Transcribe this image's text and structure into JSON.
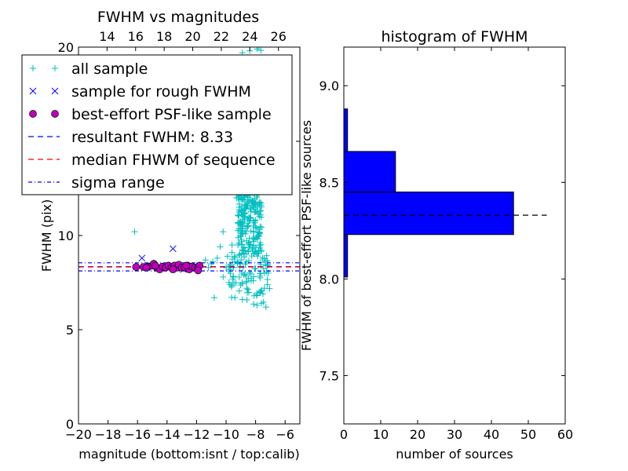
{
  "chart_data": [
    {
      "type": "scatter",
      "title": "FWHM vs magnitudes",
      "xlabel": "magnitude (bottom:isnt / top:calib)",
      "ylabel": "FWHM (pix)",
      "xlim": [
        -20,
        -5
      ],
      "ylim": [
        0,
        20
      ],
      "xticks": [
        -20,
        -18,
        -16,
        -14,
        -12,
        -10,
        -8,
        -6
      ],
      "xtick_labels": [
        "−20",
        "−18",
        "−16",
        "−14",
        "−12",
        "−10",
        "−8",
        "−6"
      ],
      "yticks": [
        0,
        5,
        10,
        15,
        20
      ],
      "ytick_labels": [
        "0",
        "5",
        "10",
        "15",
        "20"
      ],
      "top_xlim": [
        12,
        27.5
      ],
      "top_xticks": [
        14,
        16,
        18,
        20,
        22,
        24,
        26
      ],
      "top_xtick_labels": [
        "14",
        "16",
        "18",
        "20",
        "22",
        "24",
        "26"
      ],
      "legend_position": "upper-left",
      "legend": [
        {
          "label": "all sample",
          "marker": "+",
          "color": "#00bfbf"
        },
        {
          "label": "sample for rough FWHM",
          "marker": "x",
          "color": "#0000ff"
        },
        {
          "label": "best-effort PSF-like sample",
          "marker": "o",
          "color": "#bf00bf"
        },
        {
          "label": "resultant FWHM: 8.33",
          "line": "dashed",
          "color": "#0000ff"
        },
        {
          "label": "median FHWM of sequence",
          "line": "dashed",
          "color": "#ff0000"
        },
        {
          "label": "sigma range",
          "line": "dashdot",
          "color": "#0000ff"
        }
      ],
      "hlines": [
        {
          "y": 8.33,
          "style": "dashed",
          "color": "#0000ff"
        },
        {
          "y": 8.35,
          "style": "dashed",
          "color": "#ff0000"
        },
        {
          "y": 8.55,
          "style": "dashdot",
          "color": "#0000ff"
        },
        {
          "y": 8.12,
          "style": "dashdot",
          "color": "#0000ff"
        }
      ],
      "series": [
        {
          "name": "all sample",
          "color": "#00bfbf",
          "marker": "+",
          "points": [
            [
              -16.2,
              10.2
            ],
            [
              -7.8,
              20.0
            ],
            [
              -8.4,
              19.8
            ],
            [
              -7.9,
              19.9
            ],
            [
              -8.9,
              19.7
            ],
            [
              -10.2,
              10.2
            ],
            [
              -10.4,
              9.4
            ],
            [
              -9.6,
              9.1
            ],
            [
              -10.9,
              8.6
            ],
            [
              -10.6,
              8.8
            ],
            [
              -11.0,
              8.5
            ],
            [
              -9.8,
              8.2
            ],
            [
              -12.8,
              8.4
            ],
            [
              -14.2,
              8.3
            ],
            [
              -15.2,
              8.4
            ],
            [
              -11.4,
              8.7
            ],
            [
              -10.8,
              6.7
            ],
            [
              -9.4,
              6.7
            ],
            [
              -8.9,
              6.6
            ],
            [
              -7.9,
              6.3
            ],
            [
              -7.6,
              6.4
            ],
            [
              -7.3,
              6.2
            ],
            [
              -8.1,
              6.8
            ],
            [
              -7.7,
              7.0
            ],
            [
              -9.8,
              7.5
            ],
            [
              -10.2,
              7.8
            ],
            [
              -9.9,
              8.9
            ],
            [
              -9.6,
              9.5
            ],
            [
              -9.0,
              10.5
            ],
            [
              -8.8,
              11.0
            ],
            [
              -8.5,
              11.8
            ],
            [
              -8.2,
              12.3
            ],
            [
              -8.0,
              12.8
            ],
            [
              -9.3,
              12.0
            ],
            [
              -9.1,
              11.5
            ],
            [
              -7.5,
              6.9
            ],
            [
              -7.4,
              7.2
            ],
            [
              -7.2,
              7.4
            ],
            [
              -8.6,
              7.2
            ],
            [
              -8.3,
              7.6
            ],
            [
              -9.7,
              8.4
            ],
            [
              -9.5,
              8.3
            ],
            [
              -11.2,
              8.3
            ],
            [
              -10.0,
              8.3
            ],
            [
              -12.0,
              8.4
            ]
          ],
          "dense_clump": {
            "x_range": [
              -10,
              -7.2
            ],
            "y_range": [
              6.3,
              20
            ],
            "count": 380,
            "x_center": -8.4
          }
        },
        {
          "name": "sample for rough FWHM",
          "color": "#0000ff",
          "marker": "x",
          "points": [
            [
              -15.7,
              8.8
            ],
            [
              -13.6,
              9.3
            ],
            [
              -14.4,
              8.3
            ],
            [
              -13.8,
              8.4
            ],
            [
              -12.9,
              8.2
            ],
            [
              -12.1,
              8.4
            ],
            [
              -15.0,
              8.3
            ],
            [
              -13.1,
              8.3
            ]
          ]
        },
        {
          "name": "best-effort PSF-like sample",
          "color": "#bf00bf",
          "marker": "o",
          "points": [
            [
              -16.1,
              8.33
            ],
            [
              -15.6,
              8.33
            ],
            [
              -15.3,
              8.35
            ],
            [
              -15.0,
              8.4
            ],
            [
              -14.9,
              8.5
            ],
            [
              -14.7,
              8.3
            ],
            [
              -14.5,
              8.2
            ],
            [
              -14.3,
              8.35
            ],
            [
              -14.1,
              8.3
            ],
            [
              -13.9,
              8.4
            ],
            [
              -13.7,
              8.3
            ],
            [
              -13.5,
              8.4
            ],
            [
              -13.3,
              8.3
            ],
            [
              -13.2,
              8.45
            ],
            [
              -13.0,
              8.3
            ],
            [
              -12.8,
              8.3
            ],
            [
              -12.6,
              8.4
            ],
            [
              -12.5,
              8.2
            ],
            [
              -12.3,
              8.35
            ],
            [
              -12.1,
              8.3
            ],
            [
              -11.9,
              8.3
            ],
            [
              -11.8,
              8.4
            ],
            [
              -11.9,
              8.15
            ],
            [
              -12.7,
              8.4
            ],
            [
              -13.6,
              8.2
            ],
            [
              -14.8,
              8.4
            ],
            [
              -15.4,
              8.3
            ]
          ]
        }
      ]
    },
    {
      "type": "bar",
      "orientation": "horizontal",
      "title": "histogram of FWHM",
      "xlabel": "number of sources",
      "ylabel": "FWHM of best-effort PSF-like sources",
      "xlim": [
        0,
        60
      ],
      "ylim": [
        7.25,
        9.2
      ],
      "xticks": [
        0,
        10,
        20,
        30,
        40,
        50,
        60
      ],
      "xtick_labels": [
        "0",
        "10",
        "20",
        "30",
        "40",
        "50",
        "60"
      ],
      "yticks": [
        7.5,
        8.0,
        8.5,
        9.0
      ],
      "ytick_labels": [
        "7.5",
        "8.0",
        "8.5",
        "9.0"
      ],
      "bar_color": "#0000ff",
      "bins": [
        {
          "from": 8.01,
          "to": 8.23,
          "count": 1
        },
        {
          "from": 8.23,
          "to": 8.45,
          "count": 46
        },
        {
          "from": 8.45,
          "to": 8.66,
          "count": 14
        },
        {
          "from": 8.66,
          "to": 8.88,
          "count": 1
        }
      ],
      "hline": {
        "y": 8.33,
        "x_range": [
          0,
          55
        ],
        "style": "dashed",
        "color": "#000000"
      }
    }
  ]
}
